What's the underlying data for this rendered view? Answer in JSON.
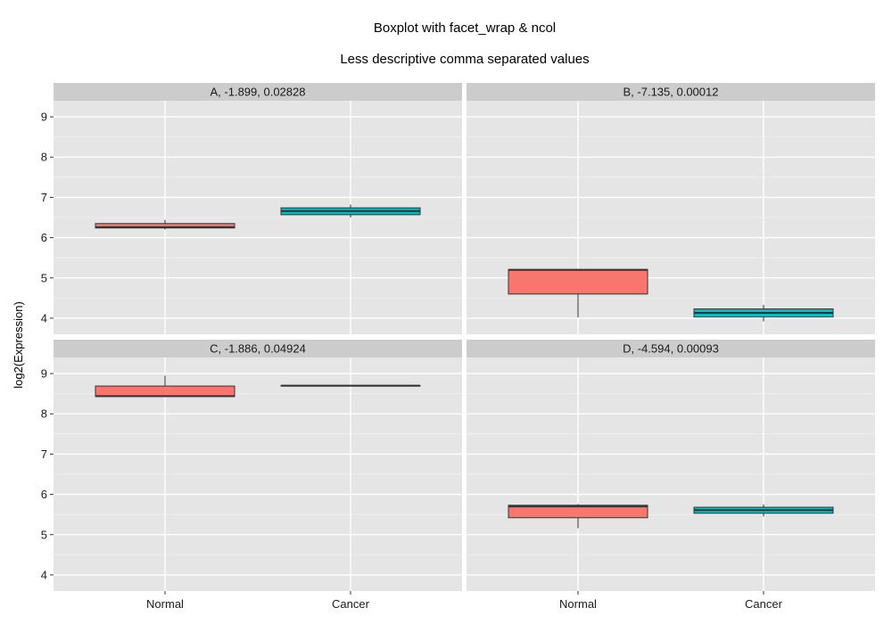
{
  "chart_data": {
    "type": "boxplot",
    "title": "Boxplot with facet_wrap & ncol",
    "subtitle": "Less descriptive comma separated values",
    "ylabel": "log2(Expression)",
    "xlabel": "",
    "categories": [
      "Normal",
      "Cancer"
    ],
    "ylim": [
      3.6,
      9.4
    ],
    "yticks": [
      4,
      5,
      6,
      7,
      8,
      9
    ],
    "ncol": 2,
    "grid": true,
    "legend": "none",
    "fill_colors": {
      "Normal": "#F8766D",
      "Cancer": "#00BFC4"
    },
    "panel_background": "#E5E5E5",
    "strip_background": "#CCCCCC",
    "panels": [
      {
        "label": "A, -1.899, 0.02828",
        "boxes": [
          {
            "category": "Normal",
            "min": 6.2,
            "q1": 6.24,
            "median": 6.26,
            "q3": 6.35,
            "max": 6.44
          },
          {
            "category": "Cancer",
            "min": 6.5,
            "q1": 6.57,
            "median": 6.66,
            "q3": 6.74,
            "max": 6.82
          }
        ]
      },
      {
        "label": "B, -7.135, 0.00012",
        "boxes": [
          {
            "category": "Normal",
            "min": 4.02,
            "q1": 4.6,
            "median": 5.2,
            "q3": 5.21,
            "max": 5.22
          },
          {
            "category": "Cancer",
            "min": 3.92,
            "q1": 4.03,
            "median": 4.13,
            "q3": 4.23,
            "max": 4.33
          }
        ]
      },
      {
        "label": "C, -1.886, 0.04924",
        "boxes": [
          {
            "category": "Normal",
            "min": 8.42,
            "q1": 8.43,
            "median": 8.44,
            "q3": 8.69,
            "max": 8.95
          },
          {
            "category": "Cancer",
            "min": 8.7,
            "q1": 8.7,
            "median": 8.7,
            "q3": 8.7,
            "max": 8.7
          }
        ]
      },
      {
        "label": "D, -4.594, 0.00093",
        "boxes": [
          {
            "category": "Normal",
            "min": 5.16,
            "q1": 5.42,
            "median": 5.7,
            "q3": 5.73,
            "max": 5.76
          },
          {
            "category": "Cancer",
            "min": 5.45,
            "q1": 5.53,
            "median": 5.61,
            "q3": 5.68,
            "max": 5.75
          }
        ]
      }
    ]
  }
}
